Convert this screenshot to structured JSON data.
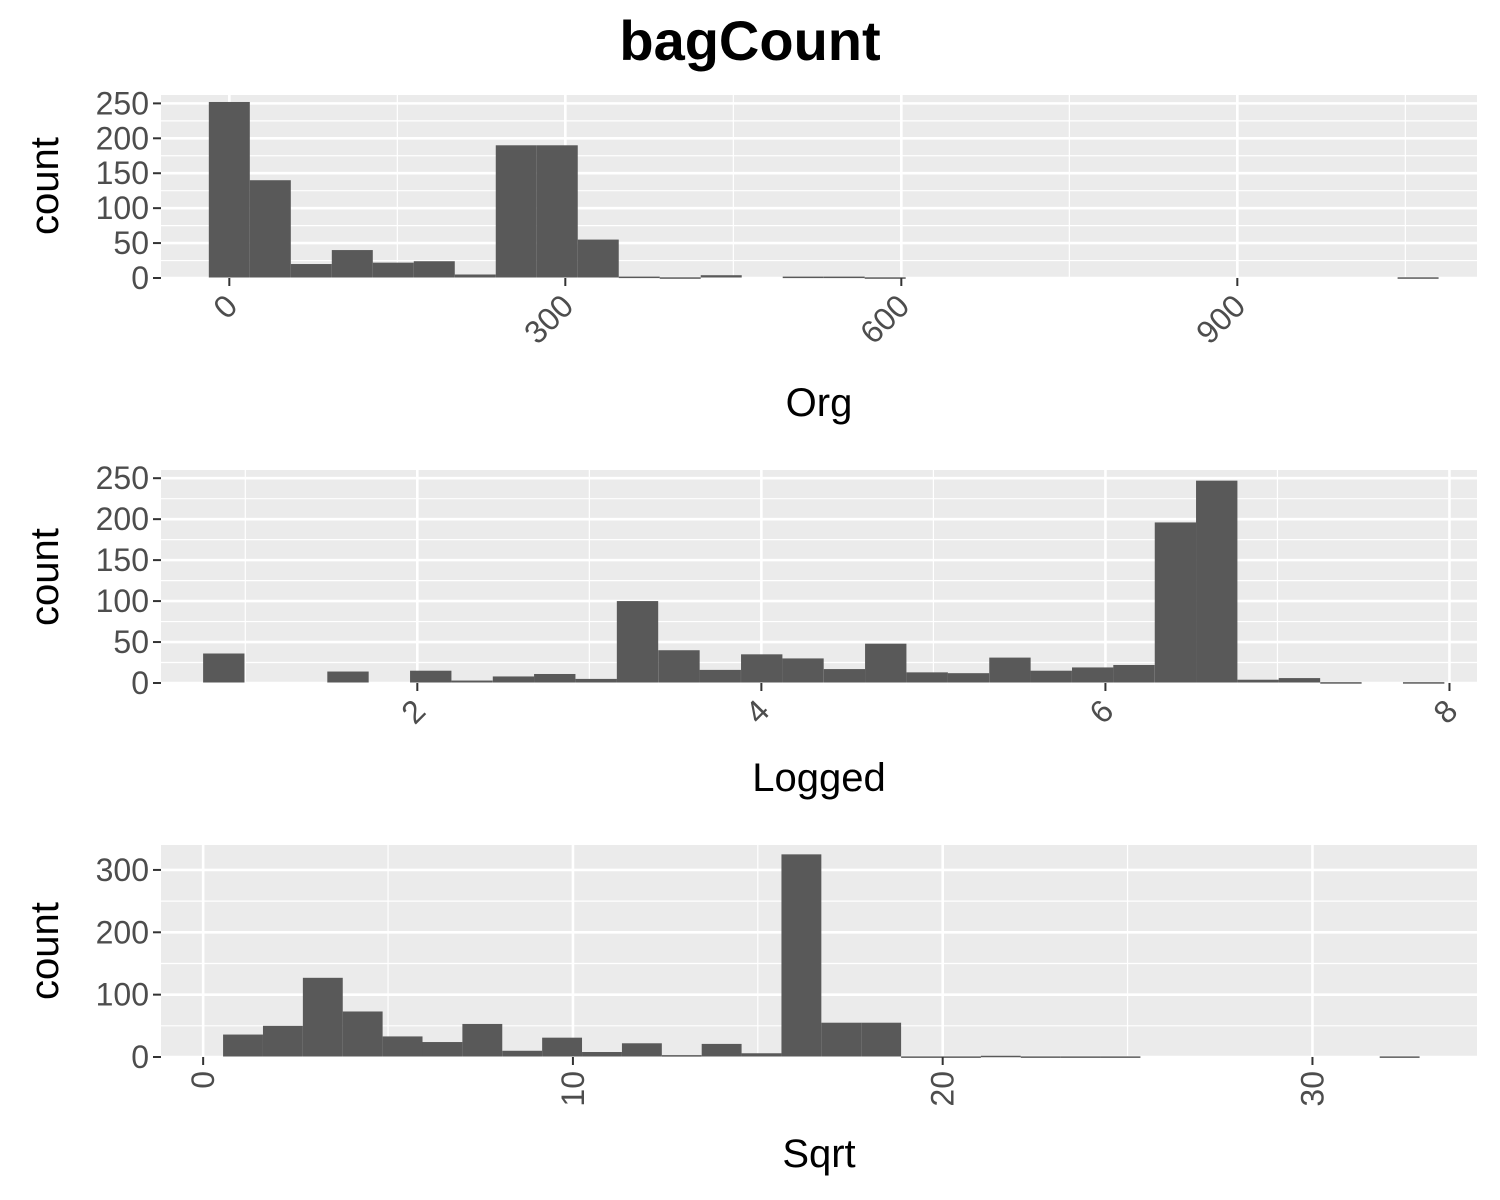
{
  "title": "bagCount",
  "chart_data": [
    {
      "type": "bar",
      "subtype": "histogram",
      "xlabel": "Org",
      "ylabel": "count",
      "xlim": [
        -61,
        1114
      ],
      "ylim": [
        0,
        262
      ],
      "xticks": [
        0,
        300,
        600,
        900
      ],
      "xtick_labels": [
        "0",
        "300",
        "600",
        "900"
      ],
      "yticks": [
        0,
        50,
        100,
        150,
        200,
        250
      ],
      "ytick_labels": [
        "0",
        "50",
        "100",
        "150",
        "200",
        "250"
      ],
      "binwidth": 36.6,
      "bin_centers": [
        0,
        36.6,
        73.2,
        109.8,
        146.4,
        183,
        219.6,
        256.2,
        292.8,
        329.4,
        366,
        402.6,
        439.2,
        475.8,
        512.4,
        549,
        585.6,
        622.2,
        658.8,
        695.4,
        732,
        768.6,
        805.2,
        841.8,
        878.4,
        915,
        951.6,
        988.2,
        1024.8,
        1061.4
      ],
      "values": [
        252,
        140,
        20,
        40,
        22,
        24,
        5,
        190,
        190,
        55,
        2,
        1,
        4,
        0,
        2,
        2,
        1,
        0,
        0,
        0,
        0,
        0,
        0,
        0,
        0,
        0,
        0,
        0,
        0,
        1
      ],
      "grid": true
    },
    {
      "type": "bar",
      "subtype": "histogram",
      "xlabel": "Logged",
      "ylabel": "count",
      "xlim": [
        0.51,
        8.16
      ],
      "ylim": [
        0,
        260
      ],
      "xticks": [
        2,
        4,
        6,
        8
      ],
      "xtick_labels": [
        "2",
        "4",
        "6",
        "8"
      ],
      "yticks": [
        0,
        50,
        100,
        150,
        200,
        250
      ],
      "ytick_labels": [
        "0",
        "50",
        "100",
        "150",
        "200",
        "250"
      ],
      "binwidth": 0.2405,
      "bin_centers": [
        0.875,
        1.116,
        1.356,
        1.597,
        1.837,
        2.078,
        2.318,
        2.559,
        2.799,
        3.04,
        3.28,
        3.521,
        3.761,
        4.002,
        4.242,
        4.483,
        4.723,
        4.964,
        5.204,
        5.445,
        5.685,
        5.926,
        6.166,
        6.407,
        6.647,
        6.888,
        7.128,
        7.369,
        7.609,
        7.85
      ],
      "values": [
        36,
        0,
        0,
        14,
        0,
        15,
        3,
        8,
        11,
        5,
        100,
        40,
        16,
        35,
        30,
        17,
        48,
        13,
        12,
        31,
        15,
        19,
        22,
        196,
        247,
        4,
        6,
        1,
        0,
        1
      ],
      "grid": true
    },
    {
      "type": "bar",
      "subtype": "histogram",
      "xlabel": "Sqrt",
      "ylabel": "count",
      "xlim": [
        -1.14,
        34.45
      ],
      "ylim": [
        0,
        340
      ],
      "xticks": [
        0,
        10,
        20,
        30
      ],
      "xtick_labels": [
        "0",
        "10",
        "20",
        "30"
      ],
      "yticks": [
        0,
        100,
        200,
        300
      ],
      "ytick_labels": [
        "0",
        "100",
        "200",
        "300"
      ],
      "binwidth": 1.0786,
      "bin_centers": [
        1.078,
        2.157,
        3.236,
        4.314,
        5.393,
        6.471,
        7.55,
        8.629,
        9.707,
        10.786,
        11.865,
        12.943,
        14.022,
        15.1,
        16.179,
        17.258,
        18.336,
        19.415,
        20.494,
        21.572,
        22.651,
        23.729,
        24.808,
        25.887,
        26.965,
        28.044,
        29.123,
        30.201,
        31.28,
        32.358
      ],
      "values": [
        36,
        50,
        127,
        73,
        33,
        24,
        53,
        10,
        31,
        8,
        22,
        3,
        21,
        6,
        325,
        55,
        55,
        1,
        1,
        2,
        1,
        1,
        1,
        0,
        0,
        0,
        0,
        0,
        0,
        1
      ],
      "grid": true
    }
  ]
}
